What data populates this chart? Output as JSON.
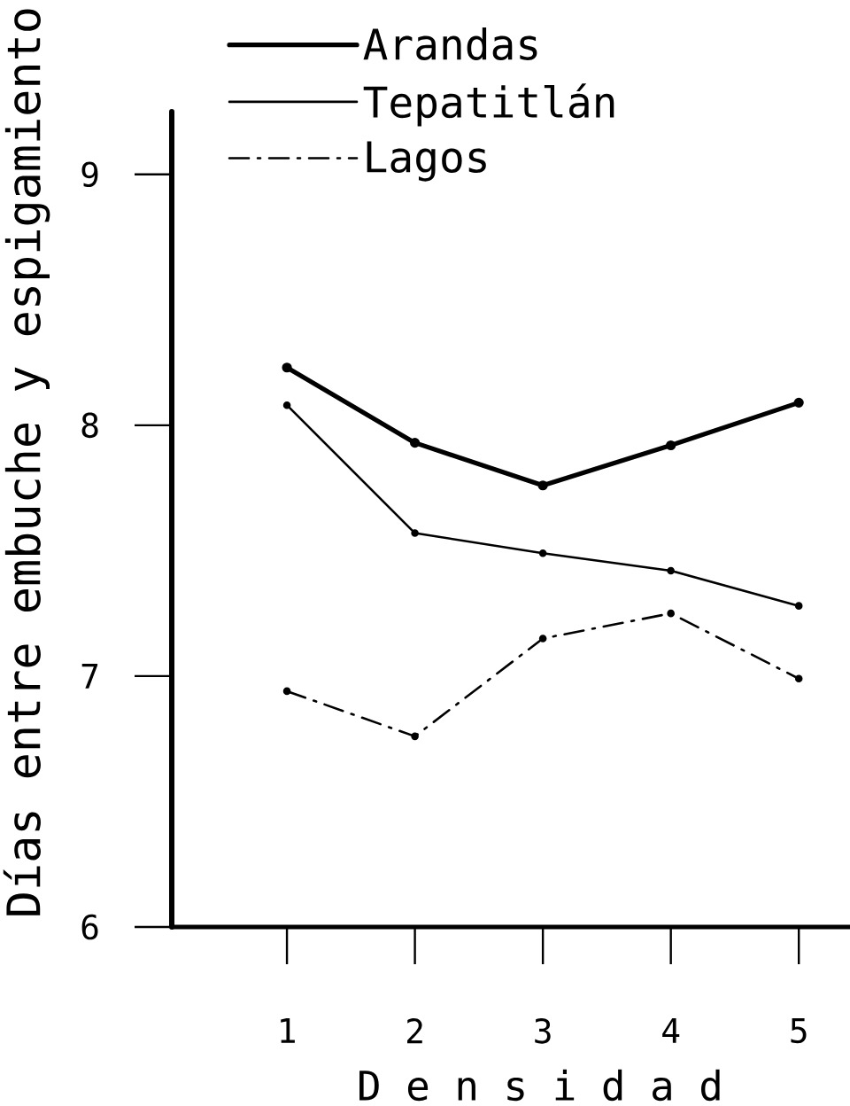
{
  "chart_data": {
    "type": "line",
    "xlabel": "D e n s i d a d",
    "ylabel": "Días entre embuche y espigamiento",
    "x": [
      1,
      2,
      3,
      4,
      5
    ],
    "xlim": [
      0.1,
      5.4
    ],
    "xticks": [
      1,
      2,
      3,
      4,
      5
    ],
    "ylim": [
      6,
      9.25
    ],
    "yticks": [
      6,
      7,
      8,
      9
    ],
    "legend": "top left",
    "marker": "circle",
    "series": [
      {
        "name": "Arandas",
        "color": "#000000",
        "line_style": "solid",
        "values": [
          8.23,
          7.93,
          7.76,
          7.92,
          8.09
        ]
      },
      {
        "name": "Tepatitlán",
        "color": "#000000",
        "line_style": "solid",
        "values": [
          8.08,
          7.57,
          7.49,
          7.42,
          7.28
        ]
      },
      {
        "name": "Lagos",
        "color": "#000000",
        "line_style": "dashdot",
        "values": [
          6.94,
          6.76,
          7.15,
          7.25,
          6.99
        ]
      }
    ]
  }
}
